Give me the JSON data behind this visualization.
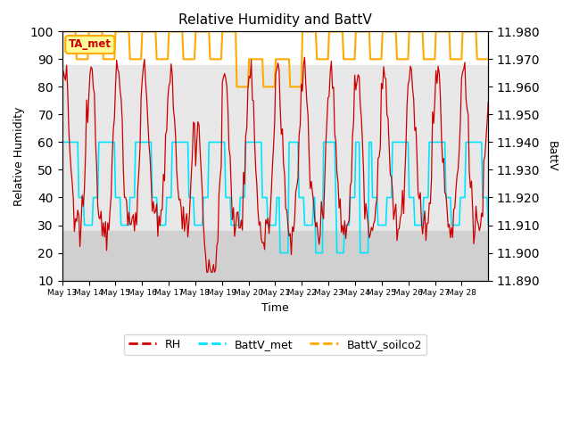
{
  "title": "Relative Humidity and BattV",
  "xlabel": "Time",
  "ylabel_left": "Relative Humidity",
  "ylabel_right": "BattV",
  "ylim_left": [
    10,
    100
  ],
  "ylim_right": [
    11.89,
    11.98
  ],
  "yticks_left": [
    10,
    20,
    30,
    40,
    50,
    60,
    70,
    80,
    90,
    100
  ],
  "yticks_right": [
    11.89,
    11.9,
    11.91,
    11.92,
    11.93,
    11.94,
    11.95,
    11.96,
    11.97,
    11.98
  ],
  "xtick_labels": [
    "May 13",
    "May 14",
    "May 15",
    "May 16",
    "May 17",
    "May 18",
    "May 19",
    "May 20",
    "May 21",
    "May 22",
    "May 23",
    "May 24",
    "May 25",
    "May 26",
    "May 27",
    "May 28"
  ],
  "bg_band_mid": [
    28,
    88
  ],
  "bg_band_low": [
    10,
    28
  ],
  "bg_color_white": "#ffffff",
  "bg_color_mid": "#e8e8e8",
  "bg_color_low": "#d0d0d0",
  "rh_color": "#cc0000",
  "battv_met_color": "#00e5ff",
  "battv_soilco2_color": "#ffaa00",
  "annotation_text": "TA_met",
  "annotation_color": "#cc0000",
  "annotation_bg": "#ffff99",
  "annotation_edge": "#ffaa00",
  "legend_labels": [
    "RH",
    "BattV_met",
    "BattV_soilco2"
  ],
  "legend_dash_colors": [
    "#cc0000",
    "#00e5ff",
    "#ffaa00"
  ]
}
